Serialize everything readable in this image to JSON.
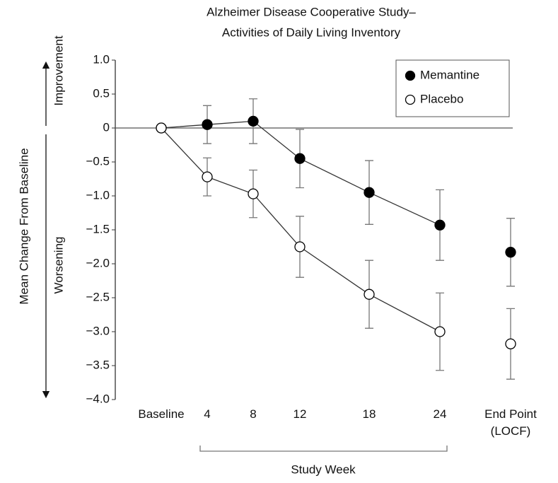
{
  "chart_data": {
    "type": "line",
    "title": [
      "Alzheimer Disease Cooperative Study–",
      "Activities of Daily Living Inventory"
    ],
    "x_label": "Study Week",
    "y_label": "Mean Change From Baseline",
    "annotations": [
      "Improvement",
      "Worsening"
    ],
    "categories": [
      "Baseline",
      "4",
      "8",
      "12",
      "18",
      "24",
      "End Point (LOCF)"
    ],
    "series": [
      {
        "name": "Memantine",
        "color": "#000000",
        "values": [
          0,
          0.05,
          0.1,
          -0.45,
          -0.95,
          -1.43,
          -1.83
        ],
        "errors": [
          null,
          0.28,
          0.33,
          0.43,
          0.47,
          0.52,
          0.5
        ]
      },
      {
        "name": "Placebo",
        "color": "#ffffff",
        "values": [
          0,
          -0.72,
          -0.97,
          -1.75,
          -2.45,
          -3.0,
          -3.18
        ],
        "errors": [
          null,
          0.28,
          0.35,
          0.45,
          0.5,
          0.57,
          0.52
        ]
      }
    ],
    "ylim": [
      -4.0,
      1.0
    ],
    "yticks": [
      {
        "value": 1.0,
        "label": "1.0"
      },
      {
        "value": 0.5,
        "label": "0.5"
      },
      0,
      {
        "value": -0.5,
        "label": "−0.5"
      },
      {
        "value": -1.0,
        "label": "−1.0"
      },
      {
        "value": -1.5,
        "label": "−1.5"
      },
      {
        "value": -2.0,
        "label": "−2.0"
      },
      {
        "value": -2.5,
        "label": "−2.5"
      },
      {
        "value": -3.0,
        "label": "−3.0"
      },
      {
        "value": -3.5,
        "label": "−3.5"
      },
      {
        "value": -4.0,
        "label": "−4.0"
      }
    ],
    "legend": "upper right"
  }
}
